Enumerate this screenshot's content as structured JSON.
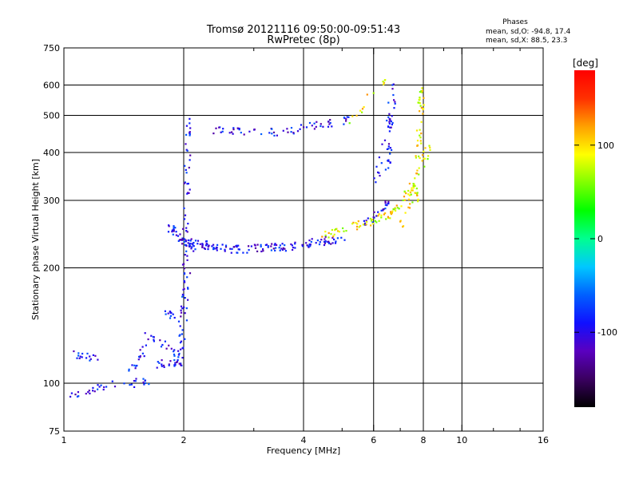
{
  "chart_data": {
    "type": "scatter",
    "title": "Tromsø 20121116 09:50:00-09:51:43",
    "subtitle": "RwPretec (8p)",
    "xlabel": "Frequency [MHz]",
    "ylabel": "Stationary phase Virtual Height [km]",
    "x_scale": "log",
    "y_scale": "log",
    "xlim": [
      1,
      16
    ],
    "ylim": [
      75,
      750
    ],
    "x_ticks": [
      1,
      2,
      4,
      6,
      8,
      10,
      16
    ],
    "x_tick_labels": [
      "1",
      "2",
      "4",
      "6",
      "8",
      "10",
      "16"
    ],
    "x_grid": [
      2,
      4,
      6,
      8,
      10
    ],
    "y_ticks": [
      75,
      100,
      200,
      300,
      400,
      500,
      600,
      750
    ],
    "y_tick_labels": [
      "75",
      "100",
      "200",
      "300",
      "400",
      "500",
      "600",
      "750"
    ],
    "y_grid": [
      100,
      200,
      300,
      400,
      500,
      600
    ],
    "grid": true,
    "phases_stats": {
      "title": "Phases",
      "line_o": "mean, sd,O: -94.8, 17.4",
      "line_x": "mean, sd,X: 88.5, 23.3"
    },
    "colorbar": {
      "label": "[deg]",
      "range": [
        -180,
        180
      ],
      "ticks": [
        100,
        0,
        -100
      ],
      "tick_labels": [
        "100",
        "0",
        "-100"
      ],
      "colormap": [
        "#000000",
        "#3a0060",
        "#5a00c0",
        "#1010ff",
        "#0060ff",
        "#00c8ff",
        "#00ff90",
        "#00ff00",
        "#80ff00",
        "#ffff00",
        "#ffa000",
        "#ff3000",
        "#ff0000"
      ]
    },
    "series": [
      {
        "phase_deg": -95,
        "points": [
          {
            "seg": [
              [
                1.0,
                93
              ],
              [
                1.35,
                100
              ]
            ],
            "n": 22
          },
          {
            "seg": [
              [
                1.4,
                100
              ],
              [
                1.7,
                102
              ]
            ],
            "n": 14
          },
          {
            "seg": [
              [
                1.05,
                120
              ],
              [
                1.25,
                116
              ]
            ],
            "n": 16
          },
          {
            "seg": [
              [
                1.45,
                108
              ],
              [
                1.6,
                125
              ]
            ],
            "n": 16
          },
          {
            "seg": [
              [
                1.7,
                113
              ],
              [
                1.95,
                113
              ]
            ],
            "n": 22
          },
          {
            "seg": [
              [
                1.6,
                135
              ],
              [
                1.95,
                118
              ]
            ],
            "n": 20
          },
          {
            "seg": [
              [
                1.95,
                112
              ],
              [
                2.03,
                200
              ]
            ],
            "n": 40
          },
          {
            "seg": [
              [
                2.0,
                200
              ],
              [
                2.05,
                500
              ]
            ],
            "n": 45
          },
          {
            "seg": [
              [
                1.85,
                255
              ],
              [
                2.1,
                225
              ]
            ],
            "n": 40
          },
          {
            "seg": [
              [
                2.05,
                235
              ],
              [
                2.6,
                224
              ]
            ],
            "n": 45
          },
          {
            "seg": [
              [
                2.6,
                224
              ],
              [
                3.6,
                228
              ]
            ],
            "n": 50
          },
          {
            "seg": [
              [
                3.6,
                228
              ],
              [
                5.0,
                240
              ]
            ],
            "n": 45
          },
          {
            "seg": [
              [
                2.3,
                460
              ],
              [
                3.5,
                455
              ]
            ],
            "n": 30
          },
          {
            "seg": [
              [
                3.5,
                455
              ],
              [
                5.2,
                490
              ]
            ],
            "n": 35
          },
          {
            "seg": [
              [
                6.5,
                360
              ],
              [
                6.6,
                620
              ]
            ],
            "n": 30
          },
          {
            "seg": [
              [
                6.0,
                330
              ],
              [
                6.8,
                560
              ]
            ],
            "n": 20
          },
          {
            "seg": [
              [
                5.5,
                255
              ],
              [
                6.6,
                300
              ]
            ],
            "n": 25
          },
          {
            "seg": [
              [
                1.75,
                155
              ],
              [
                1.95,
                145
              ]
            ],
            "n": 12
          }
        ]
      },
      {
        "phase_deg": 90,
        "points": [
          {
            "seg": [
              [
                4.5,
                245
              ],
              [
                6.5,
                275
              ]
            ],
            "n": 45
          },
          {
            "seg": [
              [
                6.5,
                275
              ],
              [
                7.5,
                330
              ]
            ],
            "n": 30
          },
          {
            "seg": [
              [
                7.6,
                300
              ],
              [
                7.9,
                600
              ]
            ],
            "n": 45
          },
          {
            "seg": [
              [
                7.0,
                260
              ],
              [
                8.2,
                420
              ]
            ],
            "n": 35
          },
          {
            "seg": [
              [
                5.2,
                490
              ],
              [
                6.5,
                640
              ]
            ],
            "n": 14
          }
        ]
      }
    ]
  }
}
